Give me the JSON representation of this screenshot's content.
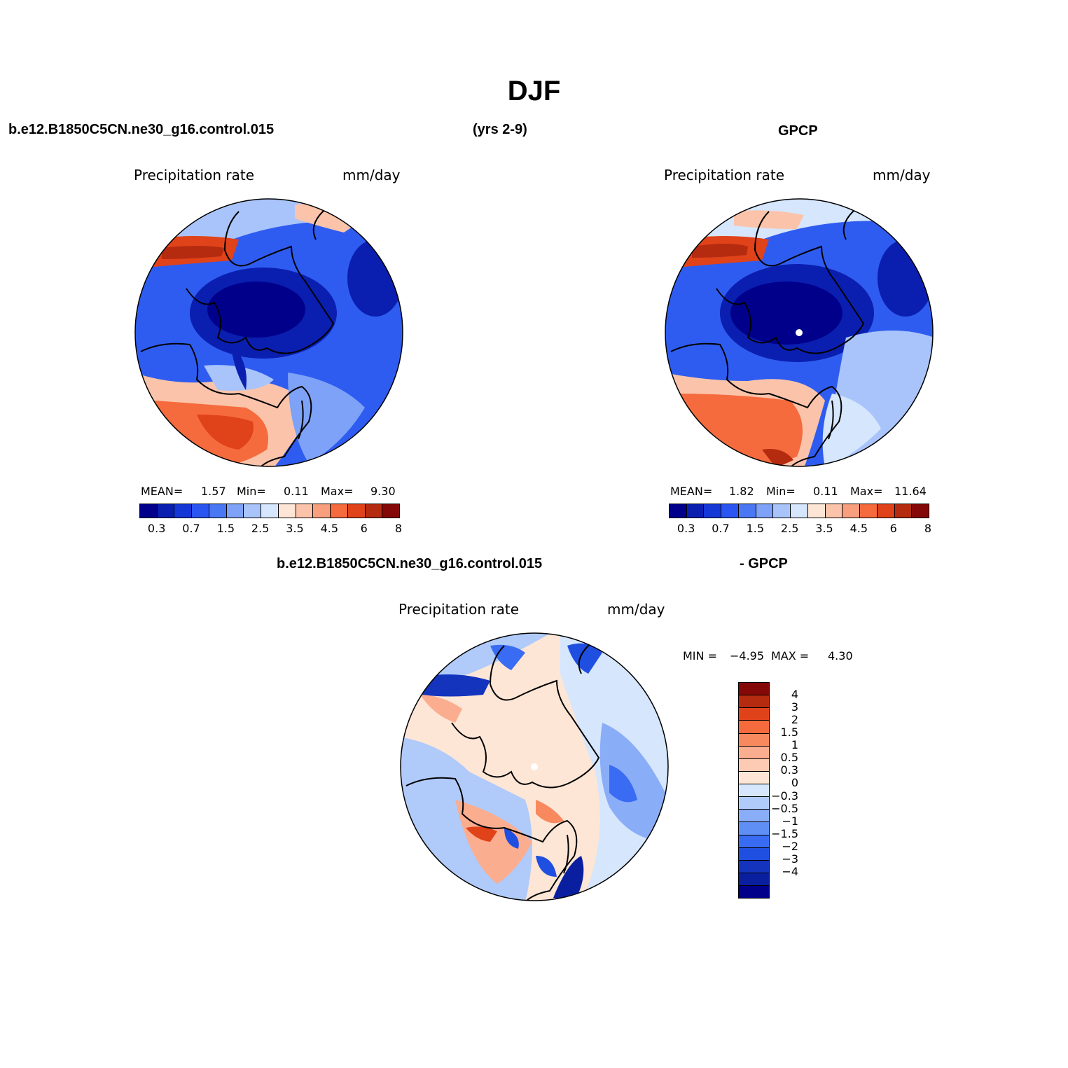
{
  "main_title": "DJF",
  "top": {
    "case_label": "b.e12.B1850C5CN.ne30_g16.control.015",
    "years_label": "(yrs 2-9)",
    "obs_label": "GPCP"
  },
  "bottom": {
    "case_label": "b.e12.B1850C5CN.ne30_g16.control.015",
    "obs_label": "- GPCP"
  },
  "panels": {
    "model": {
      "variable": "Precipitation rate",
      "units": "mm/day",
      "mean_label": "MEAN=",
      "mean": "1.57",
      "min_label": "Min=",
      "min": "0.11",
      "max_label": "Max=",
      "max": "9.30"
    },
    "obs": {
      "variable": "Precipitation rate",
      "units": "mm/day",
      "mean_label": "MEAN=",
      "mean": "1.82",
      "min_label": "Min=",
      "min": "0.11",
      "max_label": "Max=",
      "max": "11.64"
    },
    "diff": {
      "variable": "Precipitation rate",
      "units": "mm/day",
      "min_label": "MIN =",
      "min": "−4.95",
      "max_label": "MAX =",
      "max": "4.30"
    }
  },
  "colorbar_abs": {
    "colors": [
      "#00008b",
      "#0a1fb0",
      "#1537d6",
      "#2b55f0",
      "#4a78f5",
      "#7da2f7",
      "#a9c4fa",
      "#d5e6fd",
      "#fde6d6",
      "#fbc4aa",
      "#f8a07e",
      "#f56b3d",
      "#e0421a",
      "#b52b0f",
      "#850808"
    ],
    "tick_labels": [
      "0.3",
      "0.7",
      "1.5",
      "2.5",
      "3.5",
      "4.5",
      "6",
      "8"
    ]
  },
  "colorbar_diff": {
    "colors": [
      "#850808",
      "#b52b0f",
      "#e0421a",
      "#f56b3d",
      "#f8895e",
      "#fbad8f",
      "#fdcbb3",
      "#fde6d6",
      "#d5e6fd",
      "#b0cafa",
      "#8aadf7",
      "#5f8ef5",
      "#3a6bf3",
      "#1f4fe0",
      "#1434bd",
      "#0a1fa0",
      "#00008b"
    ],
    "tick_labels": [
      "4",
      "3",
      "2",
      "1.5",
      "1",
      "0.5",
      "0.3",
      "0",
      "−0.3",
      "−0.5",
      "−1",
      "−1.5",
      "−2",
      "−3",
      "−4"
    ]
  }
}
